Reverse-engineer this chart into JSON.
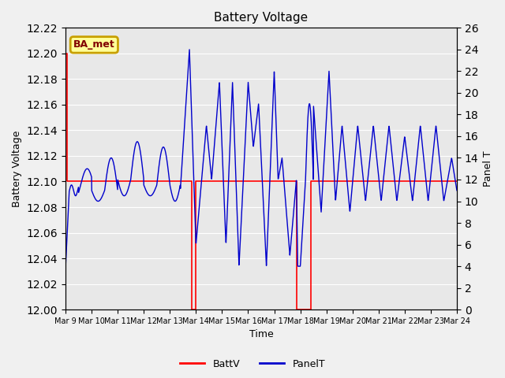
{
  "title": "Battery Voltage",
  "xlabel": "Time",
  "ylabel_left": "Battery Voltage",
  "ylabel_right": "Panel T",
  "ylim_left": [
    12.0,
    12.22
  ],
  "ylim_right": [
    0,
    26
  ],
  "yticks_left": [
    12.0,
    12.02,
    12.04,
    12.06,
    12.08,
    12.1,
    12.12,
    12.14,
    12.16,
    12.18,
    12.2,
    12.22
  ],
  "yticks_right": [
    0,
    2,
    4,
    6,
    8,
    10,
    12,
    14,
    16,
    18,
    20,
    22,
    24,
    26
  ],
  "xtick_labels": [
    "Mar 9",
    "Mar 10",
    "Mar 11",
    "Mar 12",
    "Mar 13",
    "Mar 14",
    "Mar 15",
    "Mar 16",
    "Mar 17",
    "Mar 18",
    "Mar 19",
    "Mar 20",
    "Mar 21",
    "Mar 22",
    "Mar 23",
    "Mar 24"
  ],
  "background_color": "#e8e8e8",
  "grid_color": "#ffffff",
  "legend_label_battv": "BattV",
  "legend_label_panelt": "PanelT",
  "annotation_text": "BA_met",
  "annotation_bg": "#ffff99",
  "annotation_edge": "#c8a000",
  "batt_color": "#ff0000",
  "panel_color": "#0000cc",
  "fig_bg": "#f0f0f0"
}
